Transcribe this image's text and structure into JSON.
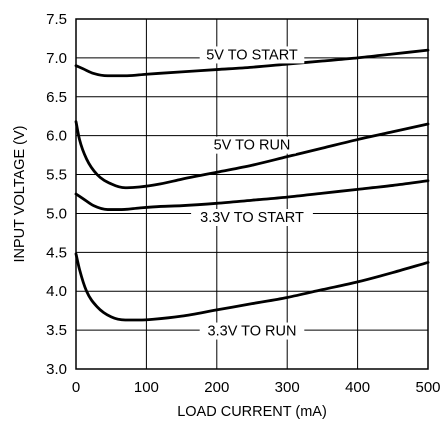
{
  "chart_data": {
    "type": "line",
    "title": "",
    "xlabel": "LOAD CURRENT (mA)",
    "ylabel": "INPUT VOLTAGE (V)",
    "xlim": [
      0,
      500
    ],
    "ylim": [
      3.0,
      7.5
    ],
    "xticks": [
      0,
      100,
      200,
      300,
      400,
      500
    ],
    "yticks": [
      3.0,
      3.5,
      4.0,
      4.5,
      5.0,
      5.5,
      6.0,
      6.5,
      7.0,
      7.5
    ],
    "grid": true,
    "legend": "none (series labeled on curves)",
    "line_color": "#000000",
    "series": [
      {
        "name": "5V TO START",
        "x": [
          0,
          10,
          25,
          45,
          70,
          100,
          150,
          200,
          250,
          300,
          350,
          400,
          450,
          500
        ],
        "y": [
          6.9,
          6.86,
          6.8,
          6.77,
          6.77,
          6.79,
          6.82,
          6.85,
          6.88,
          6.92,
          6.96,
          7.0,
          7.05,
          7.1
        ]
      },
      {
        "name": "5V TO RUN",
        "x": [
          0,
          5,
          15,
          30,
          50,
          70,
          90,
          120,
          150,
          200,
          250,
          300,
          350,
          400,
          450,
          500
        ],
        "y": [
          6.18,
          5.95,
          5.7,
          5.5,
          5.38,
          5.33,
          5.34,
          5.38,
          5.44,
          5.53,
          5.62,
          5.73,
          5.84,
          5.95,
          6.05,
          6.15
        ]
      },
      {
        "name": "3.3V TO START",
        "x": [
          0,
          10,
          25,
          45,
          65,
          90,
          120,
          150,
          200,
          250,
          300,
          350,
          400,
          450,
          500
        ],
        "y": [
          5.25,
          5.19,
          5.1,
          5.05,
          5.05,
          5.07,
          5.09,
          5.1,
          5.13,
          5.17,
          5.21,
          5.26,
          5.31,
          5.36,
          5.42
        ]
      },
      {
        "name": "3.3V TO RUN",
        "x": [
          0,
          5,
          15,
          30,
          50,
          70,
          90,
          110,
          150,
          200,
          250,
          300,
          350,
          400,
          450,
          500
        ],
        "y": [
          4.48,
          4.28,
          4.0,
          3.8,
          3.67,
          3.63,
          3.63,
          3.64,
          3.68,
          3.76,
          3.84,
          3.92,
          4.02,
          4.12,
          4.24,
          4.37
        ]
      }
    ]
  }
}
